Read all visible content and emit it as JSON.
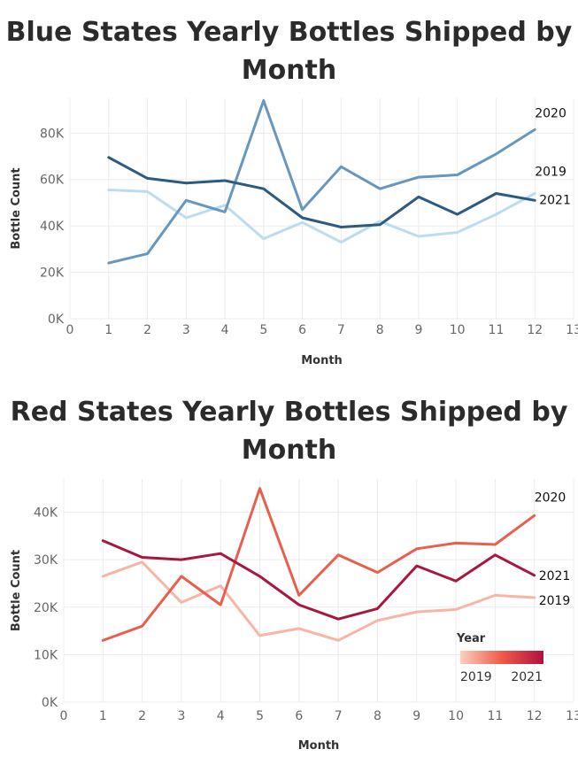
{
  "chart_data": [
    {
      "id": "blue",
      "type": "line",
      "title": "Blue States Yearly Bottles Shipped by Month",
      "xlabel": "Month",
      "ylabel": "Bottle Count",
      "xlim": [
        0,
        13
      ],
      "ylim": [
        0,
        95000
      ],
      "x_ticks": [
        "0",
        "1",
        "2",
        "3",
        "4",
        "5",
        "6",
        "7",
        "8",
        "9",
        "10",
        "11",
        "12",
        "13"
      ],
      "y_ticks": [
        {
          "value": 0,
          "label": "0K"
        },
        {
          "value": 20000,
          "label": "20K"
        },
        {
          "value": 40000,
          "label": "40K"
        },
        {
          "value": 60000,
          "label": "60K"
        },
        {
          "value": 80000,
          "label": "80K"
        }
      ],
      "grid": true,
      "x": [
        1,
        2,
        3,
        4,
        5,
        6,
        7,
        8,
        9,
        10,
        11,
        12
      ],
      "series": [
        {
          "name": "2019",
          "color": "#bcdcf0",
          "values": [
            55500,
            54800,
            43500,
            48900,
            34500,
            41500,
            33000,
            42000,
            35500,
            37200,
            45000,
            54000
          ]
        },
        {
          "name": "2020",
          "color": "#6797bf",
          "values": [
            24000,
            28000,
            51000,
            46000,
            94000,
            47000,
            65500,
            56000,
            61000,
            62000,
            71000,
            81500
          ]
        },
        {
          "name": "2021",
          "color": "#2c5a82",
          "values": [
            69500,
            60500,
            58500,
            59500,
            56000,
            43500,
            39500,
            40500,
            52500,
            45000,
            54000,
            51000
          ]
        }
      ]
    },
    {
      "id": "red",
      "type": "line",
      "title": "Red States Yearly Bottles Shipped by Month",
      "xlabel": "Month",
      "ylabel": "Bottle Count",
      "xlim": [
        0,
        13
      ],
      "ylim": [
        0,
        47000
      ],
      "x_ticks": [
        "0",
        "1",
        "2",
        "3",
        "4",
        "5",
        "6",
        "7",
        "8",
        "9",
        "10",
        "11",
        "12",
        "13"
      ],
      "y_ticks": [
        {
          "value": 0,
          "label": "0K"
        },
        {
          "value": 10000,
          "label": "10K"
        },
        {
          "value": 20000,
          "label": "20K"
        },
        {
          "value": 30000,
          "label": "30K"
        },
        {
          "value": 40000,
          "label": "40K"
        }
      ],
      "grid": true,
      "x": [
        1,
        2,
        3,
        4,
        5,
        6,
        7,
        8,
        9,
        10,
        11,
        12
      ],
      "series": [
        {
          "name": "2019",
          "color": "#f8b4a4",
          "values": [
            26500,
            29500,
            21000,
            24500,
            14000,
            15500,
            13000,
            17200,
            19000,
            19500,
            22500,
            22000
          ]
        },
        {
          "name": "2020",
          "color": "#e8604d",
          "values": [
            13000,
            16000,
            26500,
            20500,
            45000,
            22500,
            31000,
            27300,
            32300,
            33500,
            33200,
            39300
          ]
        },
        {
          "name": "2021",
          "color": "#a8173f",
          "values": [
            34000,
            30500,
            30000,
            31300,
            26500,
            20500,
            17500,
            19700,
            28700,
            25500,
            31000,
            26700
          ]
        }
      ],
      "legend": {
        "title": "Year",
        "min_label": "2019",
        "max_label": "2021",
        "color_min": "#fbd0c0",
        "color_max": "#b0123e",
        "placement": "lower-right"
      }
    }
  ]
}
